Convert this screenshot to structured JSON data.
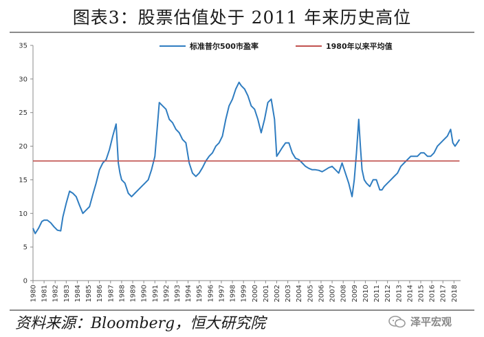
{
  "title": "图表3：股票估值处于 2011 年来历史高位",
  "source": "资料来源：Bloomberg，恒大研究院",
  "watermark": "泽平宏观",
  "chart_data": {
    "type": "line",
    "xlim": [
      1980,
      2018.6
    ],
    "ylim": [
      0,
      35
    ],
    "yticks": [
      0,
      5,
      10,
      15,
      20,
      25,
      30,
      35
    ],
    "xticks": [
      "1980",
      "1981",
      "1982",
      "1983",
      "1984",
      "1985",
      "1986",
      "1987",
      "1988",
      "1989",
      "1990",
      "1991",
      "1992",
      "1993",
      "1994",
      "1995",
      "1996",
      "1997",
      "1998",
      "1999",
      "2000",
      "2001",
      "2002",
      "2003",
      "2004",
      "2005",
      "2006",
      "2007",
      "2008",
      "2009",
      "2010",
      "2011",
      "2012",
      "2013",
      "2014",
      "2015",
      "2016",
      "2017",
      "2018"
    ],
    "legend_position": "top",
    "series": [
      {
        "name": "标准普尔500市盈率",
        "color": "#2e7cc0",
        "x": [
          1980.0,
          1980.2,
          1980.5,
          1980.8,
          1981.0,
          1981.3,
          1981.6,
          1981.9,
          1982.2,
          1982.5,
          1982.7,
          1983.0,
          1983.3,
          1983.6,
          1983.9,
          1984.2,
          1984.5,
          1984.8,
          1985.1,
          1985.4,
          1985.7,
          1986.0,
          1986.3,
          1986.6,
          1986.9,
          1987.2,
          1987.5,
          1987.7,
          1987.85,
          1988.0,
          1988.3,
          1988.6,
          1988.9,
          1989.2,
          1989.5,
          1989.8,
          1990.1,
          1990.4,
          1990.7,
          1991.0,
          1991.15,
          1991.4,
          1991.7,
          1992.0,
          1992.3,
          1992.6,
          1992.9,
          1993.2,
          1993.5,
          1993.8,
          1994.1,
          1994.4,
          1994.7,
          1995.0,
          1995.3,
          1995.6,
          1995.9,
          1996.2,
          1996.5,
          1996.8,
          1997.1,
          1997.4,
          1997.7,
          1998.0,
          1998.3,
          1998.6,
          1998.8,
          1999.1,
          1999.4,
          1999.7,
          2000.0,
          2000.3,
          2000.6,
          2000.9,
          2001.2,
          2001.5,
          2001.8,
          2002.0,
          2002.2,
          2002.5,
          2002.8,
          2003.1,
          2003.4,
          2003.7,
          2004.0,
          2004.3,
          2004.6,
          2004.9,
          2005.2,
          2005.5,
          2005.8,
          2006.1,
          2006.4,
          2006.7,
          2007.0,
          2007.3,
          2007.6,
          2007.9,
          2008.2,
          2008.5,
          2008.8,
          2009.0,
          2009.2,
          2009.4,
          2009.55,
          2009.7,
          2009.9,
          2010.1,
          2010.4,
          2010.7,
          2011.0,
          2011.3,
          2011.5,
          2011.7,
          2012.0,
          2012.3,
          2012.6,
          2012.9,
          2013.2,
          2013.5,
          2013.8,
          2014.1,
          2014.4,
          2014.7,
          2015.0,
          2015.3,
          2015.6,
          2015.9,
          2016.2,
          2016.5,
          2016.8,
          2017.1,
          2017.4,
          2017.7,
          2017.9,
          2018.1,
          2018.3,
          2018.5
        ],
        "y": [
          7.8,
          7.0,
          7.8,
          8.8,
          9.0,
          9.0,
          8.6,
          8.0,
          7.5,
          7.4,
          9.5,
          11.5,
          13.3,
          13.0,
          12.5,
          11.2,
          10.0,
          10.5,
          11.0,
          12.8,
          14.5,
          16.5,
          17.5,
          18.0,
          19.5,
          21.5,
          23.3,
          17.5,
          16.0,
          15.0,
          14.5,
          13.0,
          12.5,
          13.0,
          13.5,
          14.0,
          14.5,
          15.0,
          16.5,
          18.5,
          21.5,
          26.5,
          26.0,
          25.5,
          24.0,
          23.5,
          22.5,
          22.0,
          21.0,
          20.5,
          17.5,
          16.0,
          15.5,
          16.0,
          16.8,
          17.8,
          18.5,
          19.0,
          20.0,
          20.5,
          21.5,
          24.0,
          26.0,
          27.0,
          28.5,
          29.5,
          29.0,
          28.5,
          27.5,
          26.0,
          25.5,
          24.0,
          22.0,
          24.0,
          26.5,
          27.0,
          24.0,
          18.5,
          19.0,
          19.8,
          20.5,
          20.5,
          19.0,
          18.2,
          18.0,
          17.5,
          17.0,
          16.7,
          16.5,
          16.5,
          16.4,
          16.2,
          16.5,
          16.8,
          17.0,
          16.5,
          16.0,
          17.5,
          16.0,
          14.5,
          12.5,
          15.0,
          19.0,
          24.0,
          20.0,
          16.5,
          15.0,
          14.5,
          14.0,
          15.0,
          15.0,
          13.5,
          13.5,
          14.0,
          14.5,
          15.0,
          15.5,
          16.0,
          17.0,
          17.5,
          18.0,
          18.5,
          18.5,
          18.5,
          19.0,
          19.0,
          18.5,
          18.5,
          19.0,
          20.0,
          20.5,
          21.0,
          21.5,
          22.5,
          20.5,
          20.0,
          20.5,
          21.0
        ]
      },
      {
        "name": "1980年以来平均值",
        "color": "#c0504d",
        "x": [
          1980,
          2018.5
        ],
        "y": [
          17.8,
          17.8
        ]
      }
    ]
  }
}
